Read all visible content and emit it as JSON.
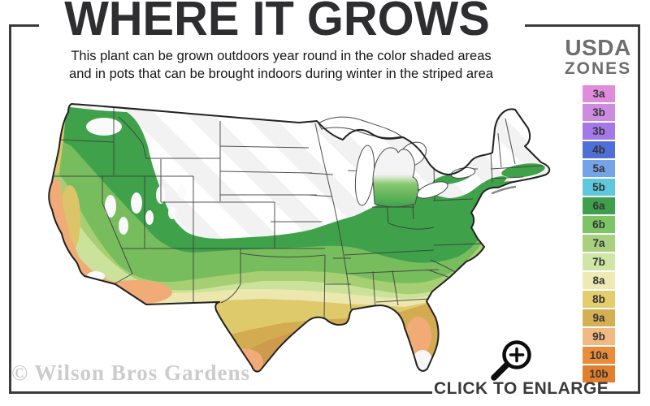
{
  "header": {
    "title": "WHERE IT GROWS",
    "subtitle_line1": "This plant can be grown outdoors year round in the color shaded areas",
    "subtitle_line2": "and in pots that can be brought indoors during winter in the striped area"
  },
  "legend": {
    "title_top": "USDA",
    "title_bottom": "ZONES",
    "zones": [
      {
        "label": "3a",
        "color": "#e08cdc"
      },
      {
        "label": "3b",
        "color": "#cd8ce0"
      },
      {
        "label": "3b",
        "color": "#a379e8"
      },
      {
        "label": "4b",
        "color": "#4e6fd6"
      },
      {
        "label": "5a",
        "color": "#74a3e8"
      },
      {
        "label": "5b",
        "color": "#60c8dc"
      },
      {
        "label": "6a",
        "color": "#3ea04a"
      },
      {
        "label": "6b",
        "color": "#7cc464"
      },
      {
        "label": "7a",
        "color": "#a8d07e"
      },
      {
        "label": "7b",
        "color": "#cfe6a4"
      },
      {
        "label": "8a",
        "color": "#eeeab4"
      },
      {
        "label": "8b",
        "color": "#e3ce6e"
      },
      {
        "label": "9a",
        "color": "#d5b052"
      },
      {
        "label": "9b",
        "color": "#f2ba83"
      },
      {
        "label": "10a",
        "color": "#e98d3a"
      },
      {
        "label": "10b",
        "color": "#e0802f"
      }
    ]
  },
  "map": {
    "watermark": "© Wilson Bros Gardens",
    "palette": {
      "hardy_green": "#3fa24b",
      "green2": "#77bd5e",
      "yellow_green": "#a6ce72",
      "pale_green": "#cbe29a",
      "cream": "#ebe7ae",
      "yellow": "#dfca6b",
      "tan": "#d3ab51",
      "gulf_tan": "#cd9a4e",
      "peach": "#f0ab77",
      "valley_yellow": "#dcc468",
      "stripe_gray": "#f2f2f2",
      "lake_white": "#ffffff",
      "border_dark": "#3f3f3f"
    }
  },
  "footer": {
    "enlarge_label": "CLICK TO ENLARGE",
    "magnifier_icon": "magnifying-glass-plus-icon"
  }
}
